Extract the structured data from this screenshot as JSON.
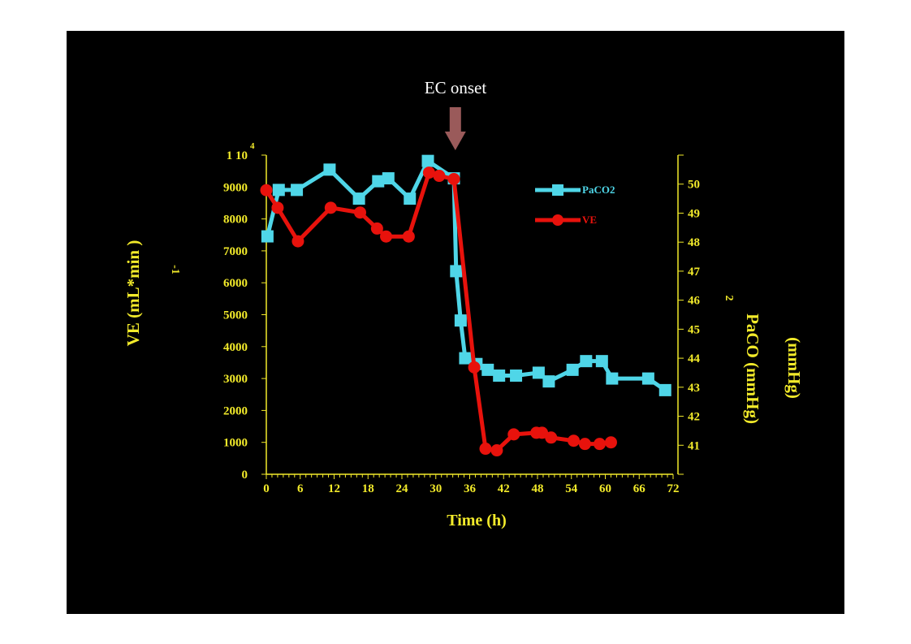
{
  "colors": {
    "background": "#000000",
    "page": "#ffffff",
    "axis_text": "#f2ea2a",
    "paco2": "#4fd6e8",
    "ve": "#e8120c",
    "arrow": "#9a5a5a",
    "annotation_text": "#ffffff"
  },
  "chart_data": {
    "type": "line",
    "title": "",
    "annotation": "EC onset",
    "annotation_x": 33.6,
    "xlabel": "Time (h)",
    "ylabel_left": "VE (mL*min )",
    "ylabel_left_sup": "-1",
    "ylabel_right": "PaCO  (mmHg)",
    "ylabel_right_sub": "2",
    "ylabel_right_extra": "(mmHg)",
    "x_ticks": [
      "0",
      "6",
      "12",
      "18",
      "24",
      "30",
      "36",
      "42",
      "48",
      "54",
      "60",
      "66",
      "72"
    ],
    "xlim": [
      0,
      72
    ],
    "ylim_left": [
      0,
      10000
    ],
    "ylim_right": [
      40,
      51
    ],
    "y_ticks_left": [
      "0",
      "1000",
      "2000",
      "3000",
      "4000",
      "5000",
      "6000",
      "7000",
      "8000",
      "9000",
      "1 10"
    ],
    "y_top_label_exponent": "4",
    "y_ticks_right": [
      "41",
      "42",
      "43",
      "44",
      "45",
      "46",
      "47",
      "48",
      "49",
      "50"
    ],
    "legend_position": "top-right",
    "series": [
      {
        "name": "PaCO2",
        "axis": "right",
        "marker": "square",
        "x": [
          0.2,
          2.2,
          5.4,
          11.2,
          16.4,
          19.8,
          21.6,
          25.4,
          28.6,
          33.2,
          33.6,
          34.4,
          35.2,
          37.2,
          39.2,
          41.2,
          44.2,
          48.2,
          50.0,
          54.2,
          56.6,
          59.4,
          61.2,
          67.6,
          70.6
        ],
        "y": [
          48.2,
          49.8,
          49.8,
          50.5,
          49.5,
          50.1,
          50.2,
          49.5,
          50.8,
          50.2,
          47.0,
          45.3,
          44.0,
          43.8,
          43.6,
          43.4,
          43.4,
          43.5,
          43.2,
          43.6,
          43.9,
          43.9,
          43.3,
          43.3,
          42.9
        ]
      },
      {
        "name": "VE",
        "axis": "left",
        "marker": "circle",
        "x": [
          0.0,
          2.0,
          5.6,
          11.4,
          16.6,
          19.6,
          21.2,
          25.2,
          28.8,
          30.6,
          33.2,
          36.8,
          38.8,
          40.8,
          43.8,
          47.8,
          48.8,
          50.4,
          54.4,
          56.4,
          59.0,
          61.0
        ],
        "y": [
          8900,
          8350,
          7300,
          8350,
          8200,
          7700,
          7450,
          7450,
          9450,
          9350,
          9250,
          3350,
          800,
          750,
          1250,
          1300,
          1300,
          1150,
          1050,
          950,
          950,
          1000
        ]
      }
    ]
  }
}
